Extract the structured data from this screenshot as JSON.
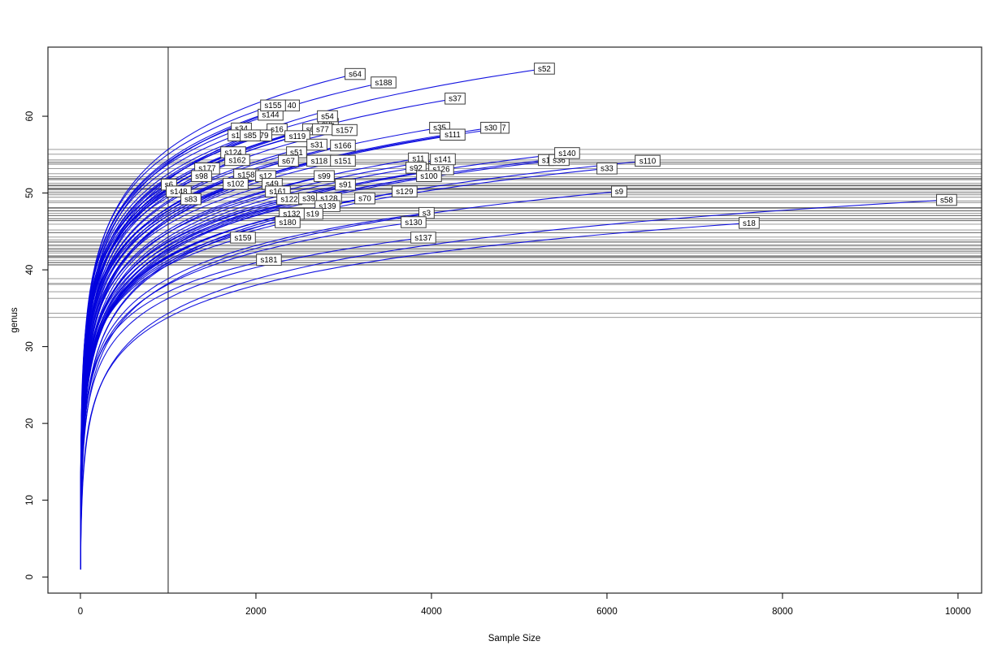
{
  "chart_data": {
    "type": "line",
    "title": "",
    "xlabel": "Sample Size",
    "ylabel": "genus",
    "x_ticks": [
      0,
      2000,
      4000,
      6000,
      8000,
      10000
    ],
    "y_ticks": [
      0,
      10,
      20,
      30,
      40,
      50,
      60
    ],
    "xlim": [
      -370,
      10269
    ],
    "ylim": [
      -2.1,
      69.0
    ],
    "grid": false,
    "legend": "none",
    "curve_color": "#0000dd",
    "reference_line_color": "#303030",
    "vertical_line_x": 1000,
    "horizontal_lines": "richness of each curve at sample size 1000",
    "series": [
      {
        "label": "s64",
        "x": 3130,
        "y": 65.5
      },
      {
        "label": "s188",
        "x": 3454,
        "y": 64.4
      },
      {
        "label": "s52",
        "x": 5287,
        "y": 66.2
      },
      {
        "label": "s37",
        "x": 4269,
        "y": 62.3
      },
      {
        "label": "40",
        "x": 2408,
        "y": 61.4
      },
      {
        "label": "s144",
        "x": 2167,
        "y": 60.2
      },
      {
        "label": "s155",
        "x": 2195,
        "y": 61.4
      },
      {
        "label": "s96",
        "x": 2824,
        "y": 59.0
      },
      {
        "label": "s54",
        "x": 2815,
        "y": 60.0
      },
      {
        "label": "s34",
        "x": 1834,
        "y": 58.4
      },
      {
        "label": "s16",
        "x": 2241,
        "y": 58.3
      },
      {
        "label": "s6",
        "x": 2620,
        "y": 58.3
      },
      {
        "label": "s77",
        "x": 2759,
        "y": 58.3
      },
      {
        "label": "s157",
        "x": 3010,
        "y": 58.2
      },
      {
        "label": "s1",
        "x": 1769,
        "y": 57.5
      },
      {
        "label": "79",
        "x": 2093,
        "y": 57.5
      },
      {
        "label": "s85",
        "x": 1935,
        "y": 57.5
      },
      {
        "label": "s119",
        "x": 2472,
        "y": 57.4
      },
      {
        "label": "s31",
        "x": 2695,
        "y": 56.3
      },
      {
        "label": "s166",
        "x": 2991,
        "y": 56.2
      },
      {
        "label": "s124",
        "x": 1741,
        "y": 55.3
      },
      {
        "label": "s51",
        "x": 2463,
        "y": 55.3
      },
      {
        "label": "s162",
        "x": 1787,
        "y": 54.3
      },
      {
        "label": "s67",
        "x": 2370,
        "y": 54.2
      },
      {
        "label": "s118",
        "x": 2722,
        "y": 54.2
      },
      {
        "label": "s151",
        "x": 2991,
        "y": 54.2
      },
      {
        "label": "s35",
        "x": 4093,
        "y": 58.5
      },
      {
        "label": "s111",
        "x": 4241,
        "y": 57.6
      },
      {
        "label": "7",
        "x": 4824,
        "y": 58.5
      },
      {
        "label": "s30",
        "x": 4676,
        "y": 58.5
      },
      {
        "label": "s11",
        "x": 3852,
        "y": 54.5
      },
      {
        "label": "s126",
        "x": 4111,
        "y": 53.1
      },
      {
        "label": "s92",
        "x": 3824,
        "y": 53.3
      },
      {
        "label": "s141",
        "x": 4130,
        "y": 54.4
      },
      {
        "label": "s100",
        "x": 3972,
        "y": 52.2
      },
      {
        "label": "s1",
        "x": 5306,
        "y": 54.3
      },
      {
        "label": "s36",
        "x": 5454,
        "y": 54.3
      },
      {
        "label": "s140",
        "x": 5546,
        "y": 55.2
      },
      {
        "label": "s33",
        "x": 6000,
        "y": 53.2
      },
      {
        "label": "s110",
        "x": 6463,
        "y": 54.2
      },
      {
        "label": "s177",
        "x": 1444,
        "y": 53.2
      },
      {
        "label": "s158",
        "x": 1889,
        "y": 52.4
      },
      {
        "label": "s12",
        "x": 2111,
        "y": 52.2
      },
      {
        "label": "s98",
        "x": 1380,
        "y": 52.2
      },
      {
        "label": "s99",
        "x": 2778,
        "y": 52.2
      },
      {
        "label": "s49",
        "x": 2185,
        "y": 51.2
      },
      {
        "label": "s102",
        "x": 1769,
        "y": 51.2
      },
      {
        "label": "s91",
        "x": 3019,
        "y": 51.1
      },
      {
        "label": "s6",
        "x": 1009,
        "y": 51.1
      },
      {
        "label": "s148",
        "x": 1120,
        "y": 50.2
      },
      {
        "label": "s161",
        "x": 2250,
        "y": 50.2
      },
      {
        "label": "s129",
        "x": 3694,
        "y": 50.2
      },
      {
        "label": "s9",
        "x": 6139,
        "y": 50.2
      },
      {
        "label": "s83",
        "x": 1259,
        "y": 49.2
      },
      {
        "label": "s122",
        "x": 2380,
        "y": 49.2
      },
      {
        "label": "s39",
        "x": 2602,
        "y": 49.3
      },
      {
        "label": "s128",
        "x": 2833,
        "y": 49.3
      },
      {
        "label": "s70",
        "x": 3241,
        "y": 49.3
      },
      {
        "label": "s58",
        "x": 9870,
        "y": 49.1
      },
      {
        "label": "s139",
        "x": 2815,
        "y": 48.3
      },
      {
        "label": "s19",
        "x": 2648,
        "y": 47.3
      },
      {
        "label": "s132",
        "x": 2408,
        "y": 47.3
      },
      {
        "label": "s3",
        "x": 3944,
        "y": 47.4
      },
      {
        "label": "s180",
        "x": 2361,
        "y": 46.2
      },
      {
        "label": "s130",
        "x": 3796,
        "y": 46.2
      },
      {
        "label": "s18",
        "x": 7620,
        "y": 46.1
      },
      {
        "label": "s159",
        "x": 1852,
        "y": 44.2
      },
      {
        "label": "s137",
        "x": 3907,
        "y": 44.2
      },
      {
        "label": "s181",
        "x": 2148,
        "y": 41.3
      }
    ]
  }
}
